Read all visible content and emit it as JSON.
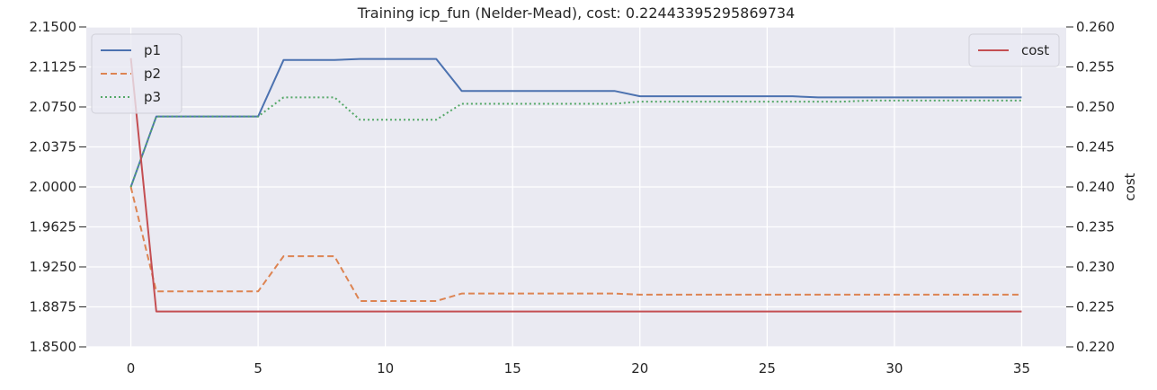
{
  "chart_data": {
    "type": "line",
    "title": "Training icp_fun (Nelder-Mead), cost: 0.22443395295869734",
    "xlabel": "",
    "ylabel": "",
    "y2label": "cost",
    "xlim": [
      -1.75,
      36.75
    ],
    "ylim": [
      1.85,
      2.15
    ],
    "y2lim": [
      0.22,
      0.26
    ],
    "xticks": [
      0,
      5,
      10,
      15,
      20,
      25,
      30,
      35
    ],
    "yticks": [
      "2.1500",
      "2.1125",
      "2.0750",
      "2.0375",
      "2.0000",
      "1.9625",
      "1.9250",
      "1.8875",
      "1.8500"
    ],
    "y2ticks": [
      "0.260",
      "0.255",
      "0.250",
      "0.245",
      "0.240",
      "0.235",
      "0.230",
      "0.225",
      "0.220"
    ],
    "grid": true,
    "background": "#eaeaf2",
    "x": [
      0,
      1,
      2,
      3,
      4,
      5,
      6,
      7,
      8,
      9,
      10,
      11,
      12,
      13,
      14,
      15,
      16,
      17,
      18,
      19,
      20,
      21,
      22,
      23,
      24,
      25,
      26,
      27,
      28,
      29,
      30,
      31,
      32,
      33,
      34,
      35
    ],
    "series": [
      {
        "name": "p1",
        "axis": "left",
        "color": "#4c72b0",
        "dash": "solid",
        "values": [
          2.0,
          2.066,
          2.066,
          2.066,
          2.066,
          2.066,
          2.119,
          2.119,
          2.119,
          2.12,
          2.12,
          2.12,
          2.12,
          2.09,
          2.09,
          2.09,
          2.09,
          2.09,
          2.09,
          2.09,
          2.085,
          2.085,
          2.085,
          2.085,
          2.085,
          2.085,
          2.085,
          2.084,
          2.084,
          2.084,
          2.084,
          2.084,
          2.084,
          2.084,
          2.084,
          2.084
        ]
      },
      {
        "name": "p2",
        "axis": "left",
        "color": "#dd8452",
        "dash": "dashed",
        "values": [
          2.0,
          1.902,
          1.902,
          1.902,
          1.902,
          1.902,
          1.935,
          1.935,
          1.935,
          1.893,
          1.893,
          1.893,
          1.893,
          1.9,
          1.9,
          1.9,
          1.9,
          1.9,
          1.9,
          1.9,
          1.899,
          1.899,
          1.899,
          1.899,
          1.899,
          1.899,
          1.899,
          1.899,
          1.899,
          1.899,
          1.899,
          1.899,
          1.899,
          1.899,
          1.899,
          1.899
        ]
      },
      {
        "name": "p3",
        "axis": "left",
        "color": "#55a868",
        "dash": "dotted",
        "values": [
          2.0,
          2.066,
          2.066,
          2.066,
          2.066,
          2.066,
          2.084,
          2.084,
          2.084,
          2.063,
          2.063,
          2.063,
          2.063,
          2.078,
          2.078,
          2.078,
          2.078,
          2.078,
          2.078,
          2.078,
          2.08,
          2.08,
          2.08,
          2.08,
          2.08,
          2.08,
          2.08,
          2.08,
          2.08,
          2.081,
          2.081,
          2.081,
          2.081,
          2.081,
          2.081,
          2.081
        ]
      },
      {
        "name": "cost",
        "axis": "right",
        "color": "#c44e52",
        "dash": "solid",
        "values": [
          0.2561,
          0.22443,
          0.22443,
          0.22443,
          0.22443,
          0.22443,
          0.22443,
          0.22443,
          0.22443,
          0.22443,
          0.22443,
          0.22443,
          0.22443,
          0.22443,
          0.22443,
          0.22443,
          0.22443,
          0.22443,
          0.22443,
          0.22443,
          0.22443,
          0.22443,
          0.22443,
          0.22443,
          0.22443,
          0.22443,
          0.22443,
          0.22443,
          0.22443,
          0.22443,
          0.22443,
          0.22443,
          0.22443,
          0.22443,
          0.22443,
          0.22443
        ]
      }
    ],
    "legends": [
      {
        "placement": "upper-left",
        "entries": [
          "p1",
          "p2",
          "p3"
        ]
      },
      {
        "placement": "upper-right",
        "entries": [
          "cost"
        ]
      }
    ]
  }
}
